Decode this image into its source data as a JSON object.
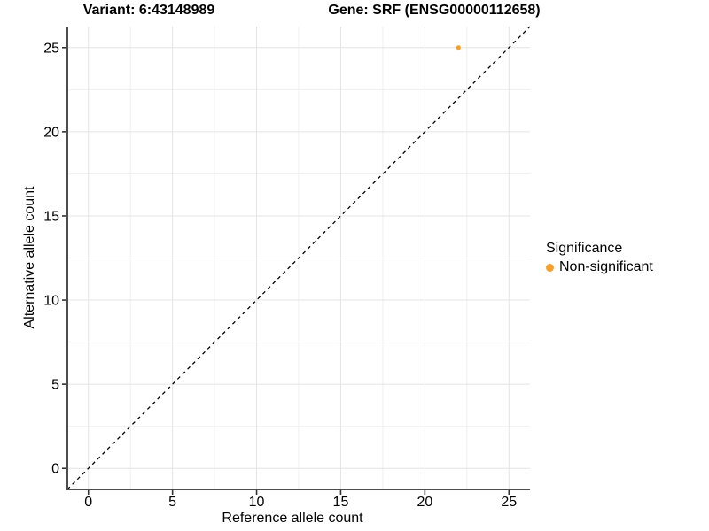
{
  "chart_data": {
    "type": "scatter",
    "title_left": "Variant: 6:43148989",
    "title_right": "Gene: SRF (ENSG00000112658)",
    "xlabel": "Reference allele count",
    "ylabel": "Alternative allele count",
    "xlim": [
      -1.25,
      26.25
    ],
    "ylim": [
      -1.25,
      26.25
    ],
    "x_ticks": [
      0,
      5,
      10,
      15,
      20,
      25
    ],
    "y_ticks": [
      0,
      5,
      10,
      15,
      20,
      25
    ],
    "minor_gridlines": true,
    "grid": true,
    "identity_line": {
      "style": "dashed",
      "color": "#000000"
    },
    "series": [
      {
        "name": "Non-significant",
        "color": "#F9A02C",
        "points": [
          {
            "x": 22,
            "y": 25
          }
        ]
      }
    ],
    "legend": {
      "title": "Significance",
      "position": "right",
      "items": [
        {
          "label": "Non-significant",
          "color": "#F9A02C"
        }
      ]
    },
    "colors": {
      "background": "#FFFFFF",
      "axis_line": "#4D4D4D",
      "tick_mark": "#333333",
      "major_grid": "#E4E4E4",
      "minor_grid": "#EFEFEF",
      "text": "#000000"
    }
  }
}
